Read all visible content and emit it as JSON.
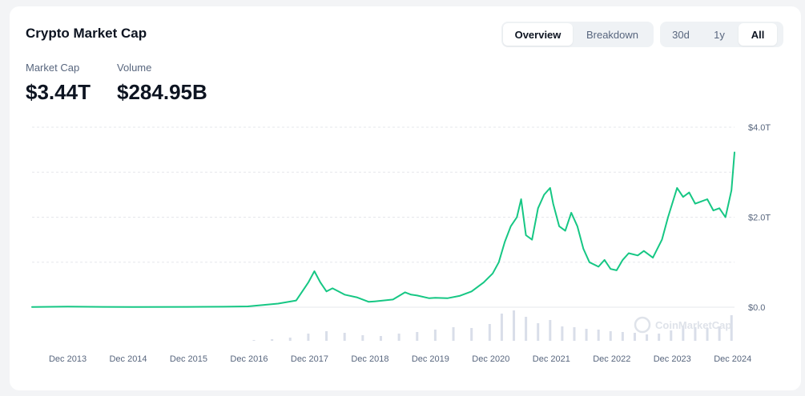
{
  "header": {
    "title": "Crypto Market Cap",
    "view_tabs": [
      {
        "label": "Overview",
        "active": true
      },
      {
        "label": "Breakdown",
        "active": false
      }
    ],
    "range_tabs": [
      {
        "label": "30d",
        "active": false
      },
      {
        "label": "1y",
        "active": false
      },
      {
        "label": "All",
        "active": true
      }
    ]
  },
  "stats": {
    "market_cap_label": "Market Cap",
    "market_cap_value": "$3.44T",
    "volume_label": "Volume",
    "volume_value": "$284.95B"
  },
  "watermark": "CoinMarketCap",
  "colors": {
    "line": "#16c784",
    "volume_bars": "#cfd6e4",
    "grid": "#e5e7eb",
    "text_secondary": "#58667e"
  },
  "chart_data": {
    "type": "line",
    "title": "",
    "xlabel": "",
    "ylabel": "",
    "x_tick_labels": [
      "Dec 2013",
      "Dec 2014",
      "Dec 2015",
      "Dec 2016",
      "Dec 2017",
      "Dec 2018",
      "Dec 2019",
      "Dec 2020",
      "Dec 2021",
      "Dec 2022",
      "Dec 2023",
      "Dec 2024"
    ],
    "y_tick_labels": [
      "$0.0",
      "$2.0T",
      "$4.0T"
    ],
    "ylim": [
      0,
      4.0
    ],
    "y_unit": "T USD",
    "grid": true,
    "series": [
      {
        "x": [
          2013.33,
          2013.92,
          2014.5,
          2015.0,
          2015.9,
          2016.5,
          2016.9,
          2017.4,
          2017.7,
          2017.9,
          2018.0,
          2018.1,
          2018.2,
          2018.3,
          2018.4,
          2018.5,
          2018.7,
          2018.9,
          2019.0,
          2019.3,
          2019.5,
          2019.6,
          2019.7,
          2019.9,
          2020.0,
          2020.2,
          2020.4,
          2020.6,
          2020.8,
          2020.95,
          2021.05,
          2021.15,
          2021.25,
          2021.35,
          2021.42,
          2021.5,
          2021.6,
          2021.7,
          2021.8,
          2021.9,
          2021.95,
          2022.05,
          2022.15,
          2022.25,
          2022.35,
          2022.45,
          2022.55,
          2022.7,
          2022.8,
          2022.9,
          2023.0,
          2023.1,
          2023.2,
          2023.35,
          2023.45,
          2023.6,
          2023.75,
          2023.85,
          2024.0,
          2024.1,
          2024.2,
          2024.3,
          2024.4,
          2024.5,
          2024.6,
          2024.7,
          2024.8,
          2024.85,
          2024.9,
          2024.95
        ],
        "y": [
          0.005,
          0.015,
          0.008,
          0.004,
          0.007,
          0.01,
          0.018,
          0.08,
          0.15,
          0.55,
          0.8,
          0.55,
          0.35,
          0.42,
          0.35,
          0.28,
          0.22,
          0.12,
          0.13,
          0.17,
          0.33,
          0.28,
          0.26,
          0.2,
          0.21,
          0.2,
          0.25,
          0.35,
          0.55,
          0.75,
          1.0,
          1.45,
          1.8,
          2.0,
          2.4,
          1.6,
          1.5,
          2.2,
          2.5,
          2.65,
          2.3,
          1.8,
          1.7,
          2.1,
          1.8,
          1.3,
          1.0,
          0.9,
          1.05,
          0.85,
          0.82,
          1.05,
          1.2,
          1.15,
          1.25,
          1.1,
          1.5,
          2.0,
          2.65,
          2.45,
          2.55,
          2.3,
          2.35,
          2.4,
          2.15,
          2.2,
          2.0,
          2.3,
          2.6,
          3.44
        ]
      }
    ],
    "volume_series": {
      "name": "Volume",
      "unit": "B USD",
      "x": [
        2017.0,
        2017.3,
        2017.6,
        2017.9,
        2018.2,
        2018.5,
        2018.8,
        2019.1,
        2019.4,
        2019.7,
        2020.0,
        2020.3,
        2020.6,
        2020.9,
        2021.1,
        2021.3,
        2021.5,
        2021.7,
        2021.9,
        2022.1,
        2022.3,
        2022.5,
        2022.7,
        2022.9,
        2023.1,
        2023.3,
        2023.5,
        2023.7,
        2023.9,
        2024.1,
        2024.3,
        2024.5,
        2024.7,
        2024.9
      ],
      "y": [
        10,
        20,
        40,
        90,
        120,
        100,
        70,
        60,
        90,
        110,
        140,
        170,
        160,
        210,
        340,
        380,
        300,
        220,
        260,
        180,
        170,
        150,
        140,
        120,
        110,
        100,
        80,
        90,
        130,
        190,
        170,
        160,
        180,
        320
      ]
    }
  }
}
